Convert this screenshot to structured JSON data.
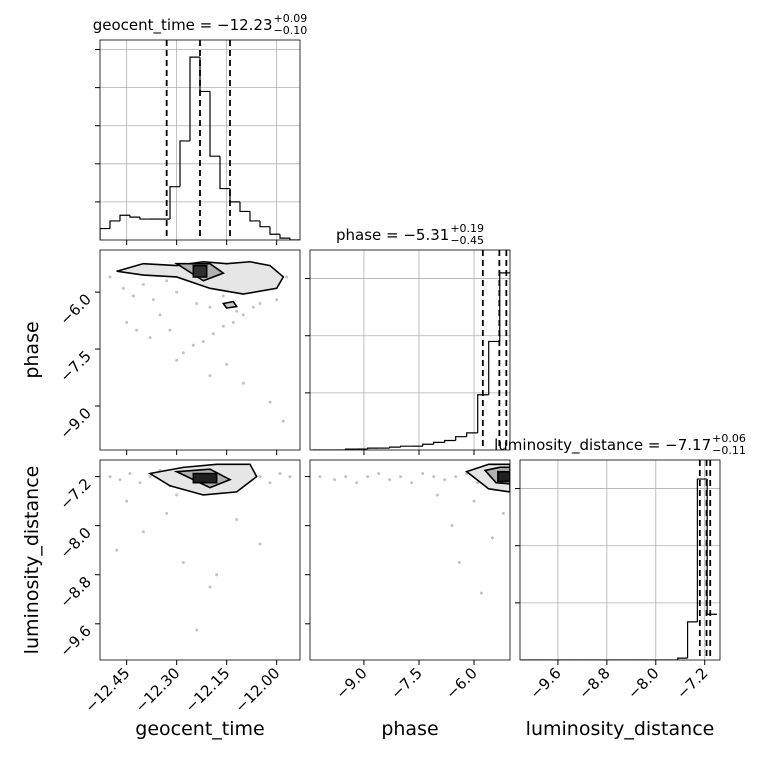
{
  "chart_data": [
    {
      "type": "histogram",
      "title": "geocent_time = −12.23",
      "title_sup": "+0.09",
      "title_sub": "−0.10",
      "bins": [
        -12.53,
        -12.5,
        -12.47,
        -12.44,
        -12.41,
        -12.38,
        -12.35,
        -12.32,
        -12.29,
        -12.26,
        -12.23,
        -12.2,
        -12.17,
        -12.14,
        -12.11,
        -12.08,
        -12.05,
        -12.02,
        -11.99,
        -11.96,
        -11.93
      ],
      "counts": [
        0.06,
        0.1,
        0.13,
        0.12,
        0.11,
        0.11,
        0.11,
        0.28,
        0.52,
        0.96,
        0.78,
        0.44,
        0.27,
        0.2,
        0.15,
        0.1,
        0.07,
        0.03,
        0.01,
        0.0
      ],
      "quantiles": [
        -12.33,
        -12.23,
        -12.14
      ],
      "xlim": [
        -12.53,
        -11.93
      ],
      "xticks": [
        -12.45,
        -12.3,
        -12.15,
        -12.0
      ],
      "ylim": [
        0,
        1.05
      ],
      "yticks": [
        0.2,
        0.4,
        0.6,
        0.8,
        1.0
      ],
      "grid": true,
      "color": "#000000"
    },
    {
      "type": "scatter",
      "x": [
        -12.5,
        -12.46,
        -12.43,
        -12.4,
        -12.37,
        -12.33,
        -12.3,
        -12.27,
        -12.24,
        -12.2,
        -12.16,
        -12.12,
        -12.08,
        -12.04,
        -12.0,
        -11.97,
        -12.3,
        -12.28,
        -12.25,
        -12.22,
        -12.19,
        -12.16,
        -12.13,
        -12.1,
        -12.07,
        -12.05,
        -12.45,
        -12.38,
        -12.35,
        -12.42,
        -12.2,
        -12.1,
        -12.02,
        -11.98,
        -12.15,
        -12.32
      ],
      "y": [
        -5.6,
        -5.9,
        -6.1,
        -5.8,
        -6.2,
        -5.7,
        -6.0,
        -5.5,
        -6.3,
        -6.4,
        -6.1,
        -6.5,
        -6.0,
        -5.8,
        -6.2,
        -5.6,
        -7.8,
        -7.6,
        -7.4,
        -7.3,
        -7.1,
        -6.9,
        -6.8,
        -6.6,
        -6.4,
        -6.3,
        -6.8,
        -7.2,
        -6.6,
        -7.0,
        -8.2,
        -8.4,
        -8.9,
        -9.4,
        -7.9,
        -7.0
      ],
      "contours": [
        {
          "x": [
            -12.48,
            -12.4,
            -12.3,
            -12.22,
            -12.15,
            -12.08,
            -12.02,
            -11.98,
            -12.0,
            -12.1,
            -12.2,
            -12.3,
            -12.4,
            -12.48
          ],
          "y": [
            -5.45,
            -5.25,
            -5.3,
            -5.2,
            -5.25,
            -5.2,
            -5.3,
            -5.6,
            -5.9,
            -6.05,
            -5.9,
            -5.6,
            -5.55,
            -5.45
          ],
          "color": "#e6e6e6"
        },
        {
          "x": [
            -12.3,
            -12.2,
            -12.16,
            -12.22,
            -12.3
          ],
          "y": [
            -5.25,
            -5.25,
            -5.5,
            -5.7,
            -5.25
          ],
          "color": "#b0b0b0"
        },
        {
          "x": [
            -12.25,
            -12.21,
            -12.21,
            -12.25
          ],
          "y": [
            -5.3,
            -5.3,
            -5.6,
            -5.6
          ],
          "color": "#303030"
        },
        {
          "x": [
            -12.16,
            -12.13,
            -12.12,
            -12.15,
            -12.16
          ],
          "y": [
            -6.3,
            -6.25,
            -6.38,
            -6.42,
            -6.3
          ],
          "color": "#c8c8c8"
        }
      ],
      "xlim": [
        -12.53,
        -11.93
      ],
      "xticks": [
        -12.45,
        -12.3,
        -12.15,
        -12.0
      ],
      "ylim": [
        -10.16,
        -4.89
      ],
      "yticks": [
        {
          "value": -6.0,
          "label": "−6.0"
        },
        {
          "value": -7.5,
          "label": "−7.5"
        },
        {
          "value": -9.0,
          "label": "−9.0"
        }
      ],
      "ylabel": "phase",
      "grid": false,
      "color": "#888888"
    },
    {
      "type": "histogram",
      "title": "phase = −5.31",
      "title_sup": "+0.19",
      "title_sub": "−0.45",
      "bins": [
        -10.4,
        -10.1,
        -9.8,
        -9.5,
        -9.2,
        -8.9,
        -8.6,
        -8.3,
        -8.0,
        -7.7,
        -7.4,
        -7.1,
        -6.8,
        -6.5,
        -6.2,
        -5.9,
        -5.6,
        -5.3,
        -5.0
      ],
      "counts": [
        0,
        0,
        0,
        0.005,
        0.005,
        0.01,
        0.01,
        0.015,
        0.02,
        0.02,
        0.03,
        0.04,
        0.05,
        0.07,
        0.09,
        0.29,
        0.57,
        0.93
      ],
      "quantiles": [
        -5.76,
        -5.31,
        -5.12
      ],
      "xlim": [
        -10.47,
        -5.02
      ],
      "xticks": [
        -9.0,
        -7.5,
        -6.0
      ],
      "ylim": [
        0,
        1.05
      ],
      "yticks": [
        0.3,
        0.6,
        0.9
      ],
      "grid": true,
      "color": "#000000"
    },
    {
      "type": "scatter",
      "x": [
        -12.5,
        -12.47,
        -12.44,
        -12.41,
        -12.38,
        -12.35,
        -12.32,
        -12.29,
        -12.26,
        -12.23,
        -12.2,
        -12.17,
        -12.14,
        -12.11,
        -12.08,
        -12.05,
        -12.02,
        -11.99,
        -11.96,
        -12.45,
        -12.4,
        -12.33,
        -12.28,
        -12.2,
        -12.12,
        -12.05,
        -12.24,
        -12.18,
        -12.3,
        -12.48
      ],
      "y": [
        -7.2,
        -7.25,
        -7.15,
        -7.3,
        -7.2,
        -7.1,
        -7.35,
        -7.2,
        -7.25,
        -7.15,
        -7.3,
        -7.2,
        -7.4,
        -7.15,
        -7.25,
        -7.2,
        -7.3,
        -7.15,
        -7.2,
        -7.6,
        -8.1,
        -7.8,
        -8.6,
        -9.0,
        -7.9,
        -8.3,
        -9.7,
        -8.8,
        -7.5,
        -8.4
      ],
      "contours": [
        {
          "x": [
            -12.38,
            -12.28,
            -12.18,
            -12.08,
            -12.06,
            -12.12,
            -12.22,
            -12.32,
            -12.38
          ],
          "y": [
            -7.15,
            -7.05,
            -7.0,
            -7.0,
            -7.2,
            -7.45,
            -7.5,
            -7.35,
            -7.15
          ],
          "color": "#e6e6e6"
        },
        {
          "x": [
            -12.3,
            -12.2,
            -12.14,
            -12.2,
            -12.3
          ],
          "y": [
            -7.12,
            -7.08,
            -7.25,
            -7.38,
            -7.12
          ],
          "color": "#b0b0b0"
        },
        {
          "x": [
            -12.25,
            -12.18,
            -12.18,
            -12.25
          ],
          "y": [
            -7.15,
            -7.15,
            -7.3,
            -7.3
          ],
          "color": "#202020"
        }
      ],
      "xlim": [
        -12.53,
        -11.93
      ],
      "xticks": [
        {
          "value": -12.45,
          "label": "−12.45"
        },
        {
          "value": -12.3,
          "label": "−12.30"
        },
        {
          "value": -12.15,
          "label": "−12.15"
        },
        {
          "value": -12.0,
          "label": "−12.00"
        }
      ],
      "ylim": [
        -10.19,
        -6.93
      ],
      "yticks": [
        {
          "value": -7.2,
          "label": "−7.2"
        },
        {
          "value": -8.0,
          "label": "−8.0"
        },
        {
          "value": -8.8,
          "label": "−8.8"
        },
        {
          "value": -9.6,
          "label": "−9.6"
        }
      ],
      "xlabel": "geocent_time",
      "ylabel": "luminosity_distance",
      "grid": false,
      "color": "#888888"
    },
    {
      "type": "scatter",
      "x": [
        -10.2,
        -9.8,
        -9.5,
        -9.2,
        -8.9,
        -8.6,
        -8.3,
        -8.0,
        -7.7,
        -7.4,
        -7.1,
        -6.8,
        -6.5,
        -6.2,
        -5.9,
        -5.6,
        -5.3,
        -5.1,
        -6.0,
        -5.5,
        -7.0,
        -6.4,
        -5.8,
        -5.2,
        -6.6
      ],
      "y": [
        -7.2,
        -7.25,
        -7.2,
        -7.3,
        -7.2,
        -7.15,
        -7.25,
        -7.2,
        -7.3,
        -7.15,
        -7.2,
        -7.25,
        -7.2,
        -7.15,
        -7.3,
        -7.2,
        -7.25,
        -7.15,
        -7.6,
        -8.2,
        -7.5,
        -8.6,
        -9.1,
        -7.8,
        -8.0
      ],
      "contours": [
        {
          "x": [
            -6.2,
            -5.6,
            -5.02,
            -5.02,
            -5.6,
            -6.2
          ],
          "y": [
            -7.12,
            -7.0,
            -7.0,
            -7.45,
            -7.4,
            -7.12
          ],
          "color": "#e6e6e6"
        },
        {
          "x": [
            -5.7,
            -5.3,
            -5.02,
            -5.02,
            -5.4,
            -5.7
          ],
          "y": [
            -7.1,
            -7.05,
            -7.05,
            -7.32,
            -7.3,
            -7.1
          ],
          "color": "#b0b0b0"
        },
        {
          "x": [
            -5.35,
            -5.02,
            -5.02,
            -5.35
          ],
          "y": [
            -7.12,
            -7.12,
            -7.28,
            -7.28
          ],
          "color": "#202020"
        }
      ],
      "xlim": [
        -10.47,
        -5.02
      ],
      "xticks": [
        {
          "value": -9.0,
          "label": "−9.0"
        },
        {
          "value": -7.5,
          "label": "−7.5"
        },
        {
          "value": -6.0,
          "label": "−6.0"
        }
      ],
      "ylim": [
        -10.19,
        -6.93
      ],
      "yticks": [
        -7.2,
        -8.0,
        -8.8,
        -9.6
      ],
      "xlabel": "phase",
      "grid": false,
      "color": "#888888"
    },
    {
      "type": "histogram",
      "title": "luminosity_distance = −7.17",
      "title_sup": "+0.06",
      "title_sub": "−0.11",
      "bins": [
        -10.2,
        -10.04,
        -9.88,
        -9.72,
        -9.56,
        -9.4,
        -9.24,
        -9.08,
        -8.92,
        -8.76,
        -8.6,
        -8.44,
        -8.28,
        -8.12,
        -7.96,
        -7.8,
        -7.64,
        -7.48,
        -7.32,
        -7.16,
        -7.0
      ],
      "counts": [
        0,
        0,
        0,
        0,
        0,
        0,
        0,
        0,
        0,
        0,
        0,
        0,
        0,
        0,
        0,
        0,
        0.01,
        0.2,
        0.95,
        0.24
      ],
      "quantiles": [
        -7.28,
        -7.17,
        -7.11
      ],
      "xlim": [
        -10.22,
        -6.95
      ],
      "xticks": [
        {
          "value": -9.6,
          "label": "−9.6"
        },
        {
          "value": -8.8,
          "label": "−8.8"
        },
        {
          "value": -8.0,
          "label": "−8.0"
        },
        {
          "value": -7.2,
          "label": "−7.2"
        }
      ],
      "ylim": [
        0,
        1.05
      ],
      "yticks": [
        0.3,
        0.6,
        0.9
      ],
      "xlabel": "luminosity_distance",
      "grid": true,
      "color": "#000000"
    }
  ]
}
